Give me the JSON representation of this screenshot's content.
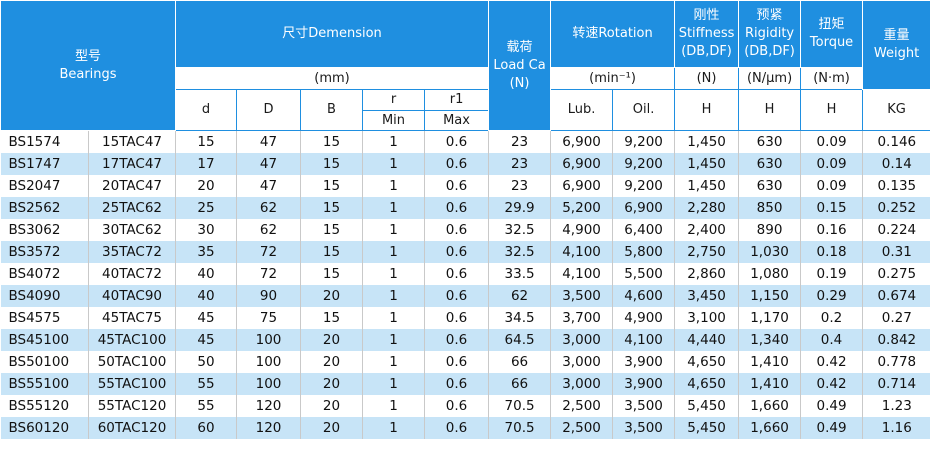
{
  "header": {
    "bearings": [
      "型号",
      "Bearings"
    ],
    "dimension": "尺寸Demension",
    "dimension_unit": "(mm)",
    "load": [
      "载荷",
      "Load Ca",
      "(N)"
    ],
    "rotation": "转速Rotation",
    "rotation_unit": "(min⁻¹)",
    "stiffness": [
      "刚性",
      "Stiffness",
      "(DB,DF)"
    ],
    "stiffness_unit": "(N)",
    "rigidity": [
      "预紧",
      "Rigidity",
      "(DB,DF)"
    ],
    "rigidity_unit": "(N/μm)",
    "torque": [
      "扭矩",
      "Torque"
    ],
    "torque_unit": "(N·m)",
    "weight": [
      "重量",
      "Weight"
    ],
    "sub": [
      "d",
      "D",
      "B",
      "r",
      "r1",
      "Lub.",
      "Oil.",
      "H",
      "H",
      "H",
      "KG"
    ],
    "min": "Min",
    "max": "Max"
  },
  "table": {
    "rows": [
      [
        "BS1574",
        "15TAC47",
        "15",
        "47",
        "15",
        "1",
        "0.6",
        "23",
        "6,900",
        "9,200",
        "1,450",
        "630",
        "0.09",
        "0.146"
      ],
      [
        "BS1747",
        "17TAC47",
        "17",
        "47",
        "15",
        "1",
        "0.6",
        "23",
        "6,900",
        "9,200",
        "1,450",
        "630",
        "0.09",
        "0.14"
      ],
      [
        "BS2047",
        "20TAC47",
        "20",
        "47",
        "15",
        "1",
        "0.6",
        "23",
        "6,900",
        "9,200",
        "1,450",
        "630",
        "0.09",
        "0.135"
      ],
      [
        "BS2562",
        "25TAC62",
        "25",
        "62",
        "15",
        "1",
        "0.6",
        "29.9",
        "5,200",
        "6,900",
        "2,280",
        "850",
        "0.15",
        "0.252"
      ],
      [
        "BS3062",
        "30TAC62",
        "30",
        "62",
        "15",
        "1",
        "0.6",
        "32.5",
        "4,900",
        "6,400",
        "2,400",
        "890",
        "0.16",
        "0.224"
      ],
      [
        "BS3572",
        "35TAC72",
        "35",
        "72",
        "15",
        "1",
        "0.6",
        "32.5",
        "4,100",
        "5,800",
        "2,750",
        "1,030",
        "0.18",
        "0.31"
      ],
      [
        "BS4072",
        "40TAC72",
        "40",
        "72",
        "15",
        "1",
        "0.6",
        "33.5",
        "4,100",
        "5,500",
        "2,860",
        "1,080",
        "0.19",
        "0.275"
      ],
      [
        "BS4090",
        "40TAC90",
        "40",
        "90",
        "20",
        "1",
        "0.6",
        "62",
        "3,500",
        "4,600",
        "3,450",
        "1,150",
        "0.29",
        "0.674"
      ],
      [
        "BS4575",
        "45TAC75",
        "45",
        "75",
        "15",
        "1",
        "0.6",
        "34.5",
        "3,700",
        "4,900",
        "3,100",
        "1,170",
        "0.2",
        "0.27"
      ],
      [
        "BS45100",
        "45TAC100",
        "45",
        "100",
        "20",
        "1",
        "0.6",
        "64.5",
        "3,000",
        "4,100",
        "4,440",
        "1,340",
        "0.4",
        "0.842"
      ],
      [
        "BS50100",
        "50TAC100",
        "50",
        "100",
        "20",
        "1",
        "0.6",
        "66",
        "3,000",
        "3,900",
        "4,650",
        "1,410",
        "0.42",
        "0.778"
      ],
      [
        "BS55100",
        "55TAC100",
        "55",
        "100",
        "20",
        "1",
        "0.6",
        "66",
        "3,000",
        "3,900",
        "4,650",
        "1,410",
        "0.42",
        "0.714"
      ],
      [
        "BS55120",
        "55TAC120",
        "55",
        "120",
        "20",
        "1",
        "0.6",
        "70.5",
        "2,500",
        "3,500",
        "5,450",
        "1,660",
        "0.49",
        "1.23"
      ],
      [
        "BS60120",
        "60TAC120",
        "60",
        "120",
        "20",
        "1",
        "0.6",
        "70.5",
        "2,500",
        "3,500",
        "5,450",
        "1,660",
        "0.49",
        "1.16"
      ]
    ]
  }
}
